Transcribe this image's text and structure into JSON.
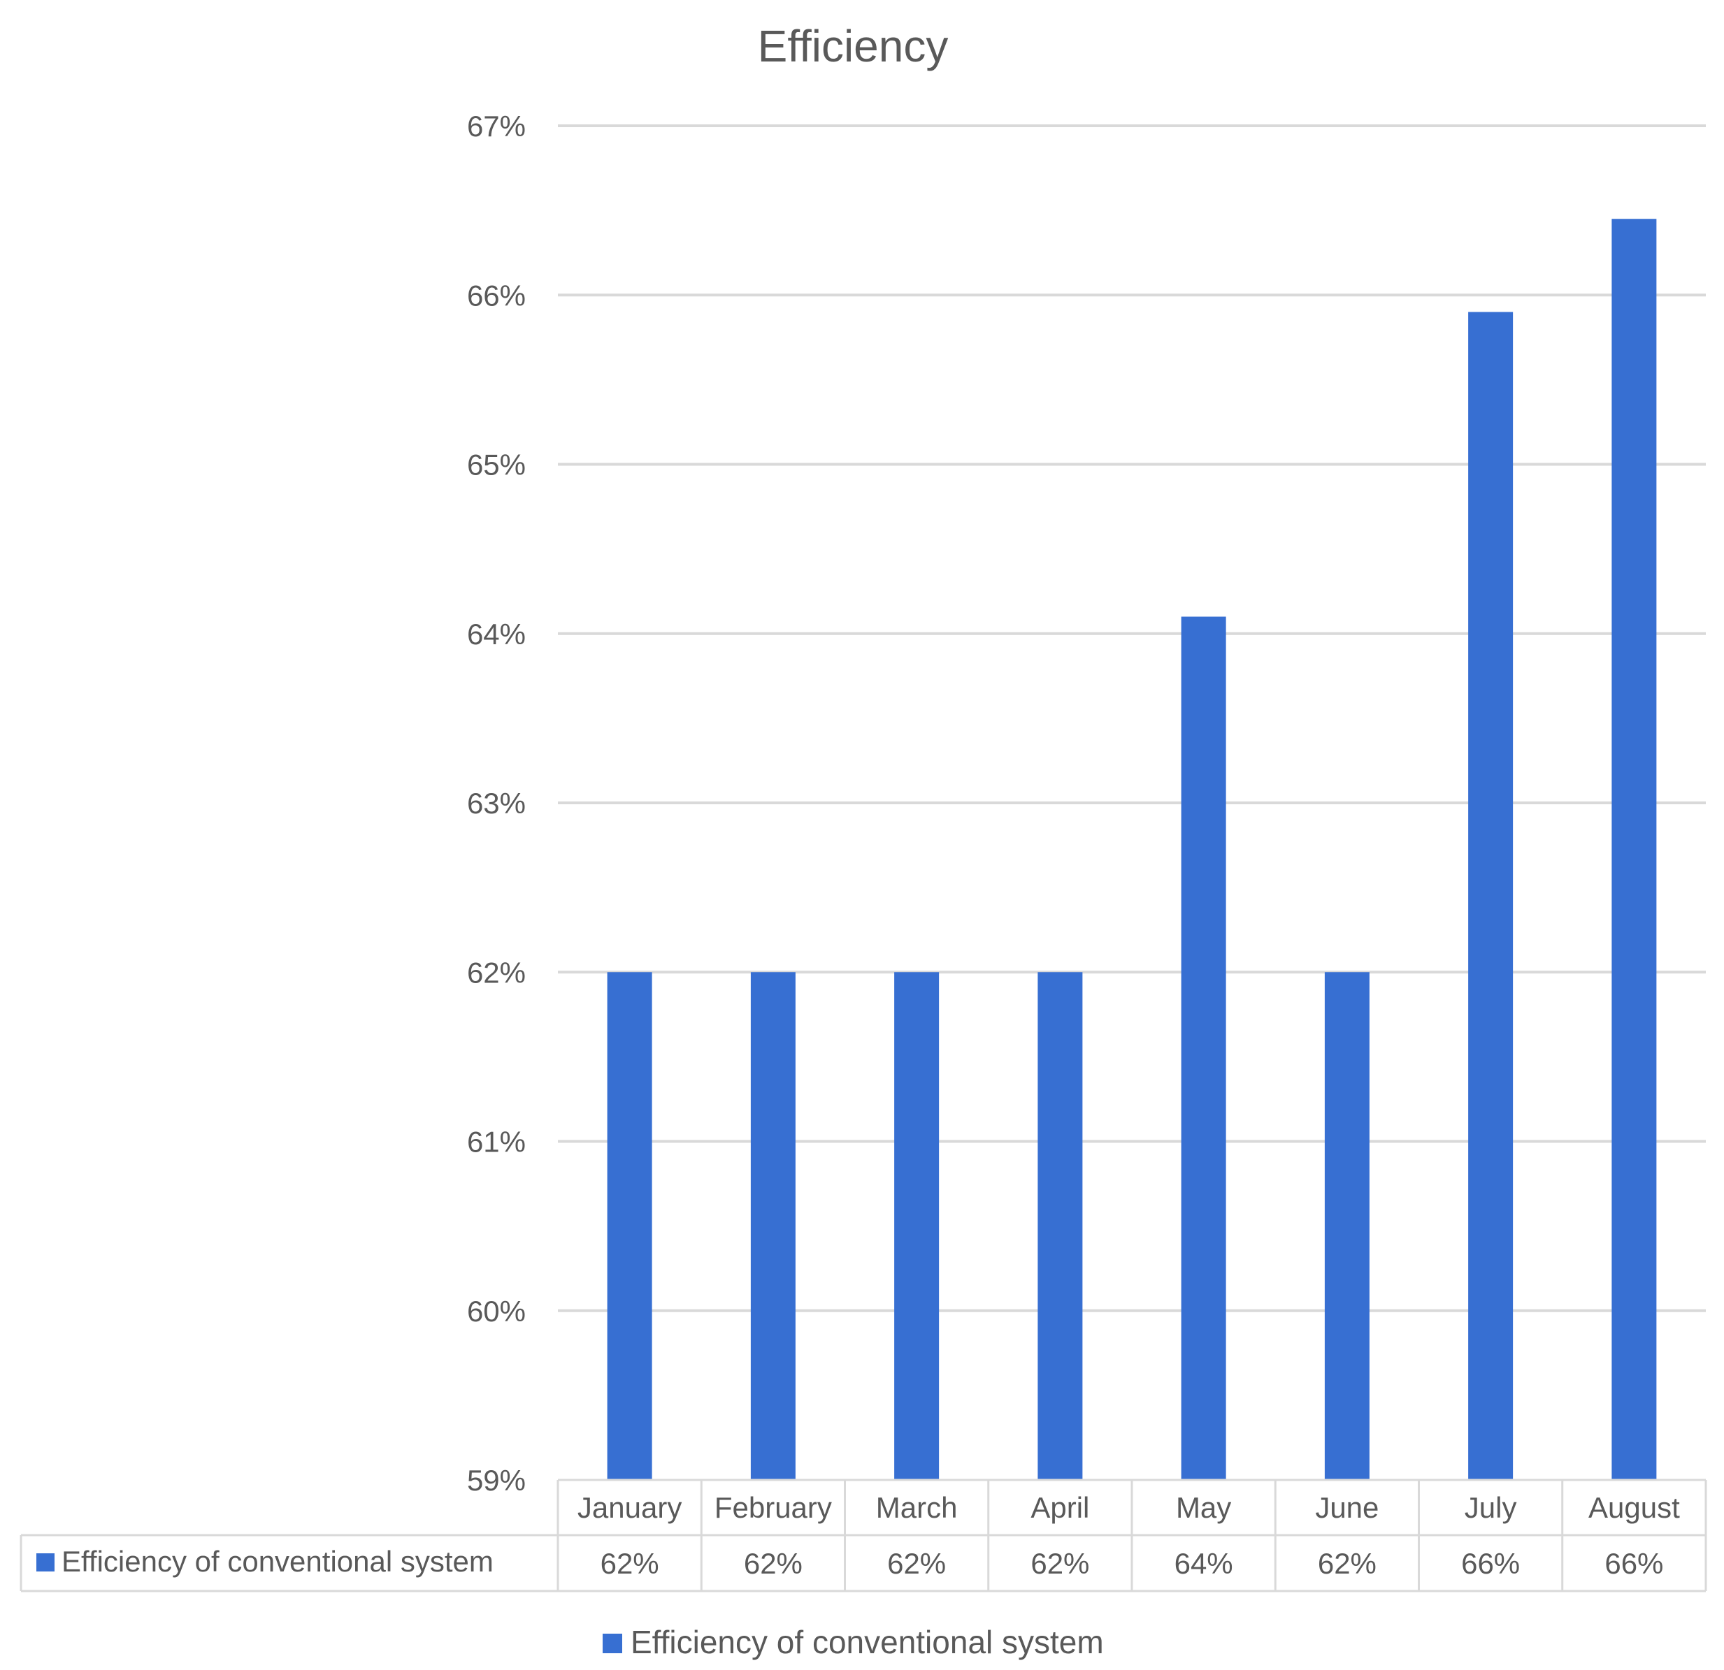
{
  "chart_data": {
    "type": "bar",
    "title": "Efficiency",
    "categories": [
      "January",
      "February",
      "March",
      "April",
      "May",
      "June",
      "July",
      "August"
    ],
    "series": [
      {
        "name": "Efficiency of  conventional system",
        "values": [
          0.62,
          0.62,
          0.62,
          0.62,
          0.641,
          0.62,
          0.659,
          0.6645
        ],
        "labels": [
          "62%",
          "62%",
          "62%",
          "62%",
          "64%",
          "62%",
          "66%",
          "66%"
        ],
        "color": "#376fd2"
      }
    ],
    "ylim": [
      0.59,
      0.67
    ],
    "yticks": [
      0.59,
      0.6,
      0.61,
      0.62,
      0.63,
      0.64,
      0.65,
      0.66,
      0.67
    ],
    "ytick_labels": [
      "59%",
      "60%",
      "61%",
      "62%",
      "63%",
      "64%",
      "65%",
      "66%",
      "67%"
    ],
    "xlabel": "",
    "ylabel": "",
    "grid": true,
    "data_table": true,
    "legend_position": "bottom"
  }
}
